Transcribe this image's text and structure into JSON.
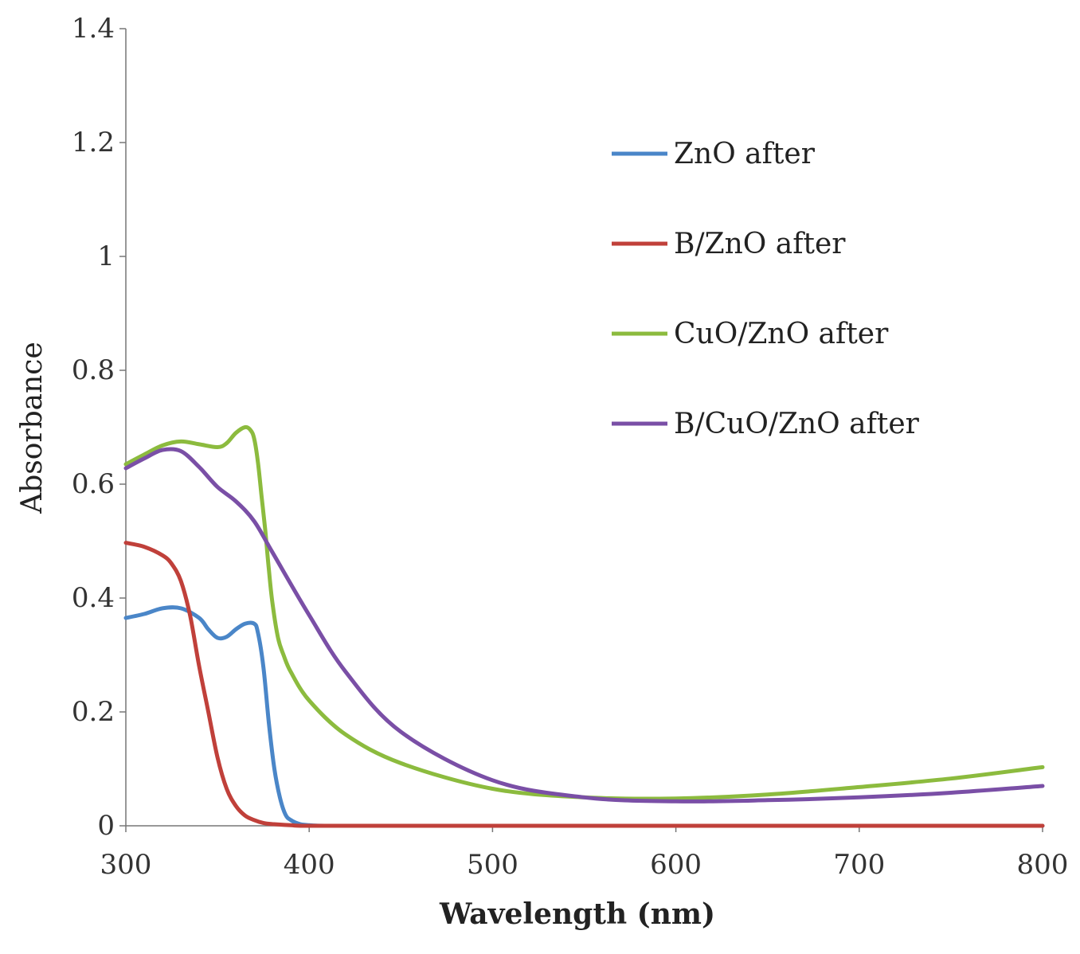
{
  "chart_data": {
    "type": "line",
    "title": "",
    "xlabel": "Wavelength (nm)",
    "ylabel": "Absorbance",
    "xlim": [
      300,
      800
    ],
    "ylim": [
      0,
      1.4
    ],
    "xticks": [
      300,
      400,
      500,
      600,
      700,
      800
    ],
    "yticks": [
      0,
      0.2,
      0.4,
      0.6,
      0.8,
      1,
      1.2,
      1.4
    ],
    "ytick_labels": [
      "0",
      "0.2",
      "0.4",
      "0.6",
      "0.8",
      "1",
      "1.2",
      "1.4"
    ],
    "legend_position": "right",
    "series": [
      {
        "name": "ZnO after",
        "color": "#4a86c8",
        "x": [
          300,
          310,
          320,
          330,
          340,
          345,
          350,
          355,
          360,
          365,
          370,
          372,
          375,
          378,
          381,
          384,
          387,
          390,
          395,
          400,
          410,
          450,
          500,
          600,
          700,
          800
        ],
        "y": [
          0.365,
          0.372,
          0.382,
          0.382,
          0.365,
          0.345,
          0.33,
          0.332,
          0.345,
          0.355,
          0.355,
          0.34,
          0.28,
          0.18,
          0.1,
          0.05,
          0.02,
          0.01,
          0.003,
          0.001,
          0,
          0,
          0,
          0,
          0,
          0
        ]
      },
      {
        "name": "B/ZnO after",
        "color": "#c0403a",
        "x": [
          300,
          310,
          320,
          325,
          330,
          335,
          340,
          345,
          350,
          355,
          360,
          365,
          370,
          375,
          380,
          390,
          400,
          450,
          500,
          600,
          700,
          800
        ],
        "y": [
          0.497,
          0.49,
          0.475,
          0.46,
          0.43,
          0.37,
          0.28,
          0.2,
          0.12,
          0.065,
          0.035,
          0.018,
          0.01,
          0.005,
          0.003,
          0.001,
          0,
          0,
          0,
          0,
          0,
          0
        ]
      },
      {
        "name": "CuO/ZnO after",
        "color": "#8cbb3e",
        "x": [
          300,
          310,
          320,
          330,
          340,
          350,
          355,
          360,
          365,
          368,
          370,
          372,
          374,
          376,
          378,
          380,
          383,
          386,
          390,
          400,
          420,
          450,
          500,
          550,
          600,
          650,
          700,
          750,
          800
        ],
        "y": [
          0.635,
          0.652,
          0.668,
          0.675,
          0.67,
          0.665,
          0.672,
          0.69,
          0.7,
          0.695,
          0.68,
          0.64,
          0.58,
          0.52,
          0.45,
          0.39,
          0.33,
          0.3,
          0.27,
          0.22,
          0.16,
          0.11,
          0.065,
          0.05,
          0.048,
          0.055,
          0.068,
          0.083,
          0.103
        ]
      },
      {
        "name": "B/CuO/ZnO after",
        "color": "#7a4fa6",
        "x": [
          300,
          310,
          320,
          330,
          340,
          350,
          360,
          370,
          380,
          400,
          420,
          450,
          500,
          550,
          600,
          650,
          700,
          750,
          800
        ],
        "y": [
          0.628,
          0.645,
          0.66,
          0.658,
          0.63,
          0.595,
          0.57,
          0.535,
          0.48,
          0.37,
          0.27,
          0.165,
          0.08,
          0.05,
          0.043,
          0.045,
          0.05,
          0.058,
          0.07
        ]
      }
    ]
  }
}
